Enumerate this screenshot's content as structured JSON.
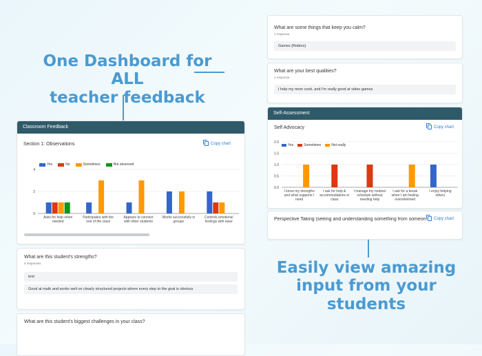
{
  "marketing": {
    "headline_line1": "One Dashboard for ALL",
    "headline_line2": "teacher feedback",
    "subhead_line1": "Easily view amazing",
    "subhead_line2": "input from your students"
  },
  "left_panel": {
    "header": "Classroom Feedback",
    "section_title": "Section 1: Observations",
    "copy_label": "Copy chart",
    "q1": {
      "question": "What are this student's strengths?",
      "responses": "4 responses",
      "answers": [
        "test",
        "Good at math and works well on clearly structured projects where every step to the goal is obvious"
      ]
    },
    "q2": {
      "question": "What are this student's biggest challenges in your class?"
    }
  },
  "right_panel": {
    "q_calm": {
      "question": "What are some things that keep you calm?",
      "responses": "1 response",
      "answer": "Games (Roblox)."
    },
    "q_best": {
      "question": "What are your best qualities?",
      "responses": "1 response",
      "answer": "I help my mom cook, and I'm really good at video games"
    },
    "header": "Self-Assessment",
    "section_title": "Self Advocacy",
    "copy_label": "Copy chart",
    "next_section": "Perspective Taking (seeing and understanding something from someone else's",
    "next_copy_label": "Copy chart"
  },
  "colors": {
    "yes": "#3366cc",
    "no": "#dc3912",
    "sometimes": "#ff9900",
    "not_observed": "#109618",
    "not_really": "#ff9900"
  },
  "chart_data": [
    {
      "type": "bar",
      "categories": [
        "Asks for help when needed",
        "Participates with the rest of the class",
        "Appears to connect with other students",
        "Works successfully in groups",
        "Controls emotions/ feelings with ease"
      ],
      "series": [
        {
          "name": "Yes",
          "values": [
            1,
            1,
            1,
            2,
            2
          ]
        },
        {
          "name": "No",
          "values": [
            1,
            0,
            0,
            0,
            1
          ]
        },
        {
          "name": "Sometimes",
          "values": [
            1,
            3,
            3,
            2,
            1
          ]
        },
        {
          "name": "Not observed",
          "values": [
            1,
            0,
            0,
            0,
            0
          ]
        }
      ],
      "yticks": [
        "0",
        "2",
        "4"
      ],
      "ylim": [
        0,
        4
      ],
      "legend": "top",
      "grid": true
    },
    {
      "type": "bar",
      "categories": [
        "I know my strengths and what supports I need",
        "I ask for help & accommodations in class",
        "I manage my routine/ schedule without needing help",
        "I ask for a break when I am feeling overwhelmed",
        "I enjoy helping others"
      ],
      "series": [
        {
          "name": "Yes",
          "values": [
            0,
            0,
            0,
            0,
            1
          ]
        },
        {
          "name": "Sometimes",
          "values": [
            0,
            1,
            1,
            0,
            0
          ]
        },
        {
          "name": "Not really",
          "values": [
            1,
            0,
            0,
            1,
            0
          ]
        }
      ],
      "yticks": [
        "0.0",
        "0.5",
        "1.0",
        "1.5",
        "2.0"
      ],
      "ylim": [
        0,
        2
      ],
      "legend": "top",
      "grid": true
    }
  ]
}
